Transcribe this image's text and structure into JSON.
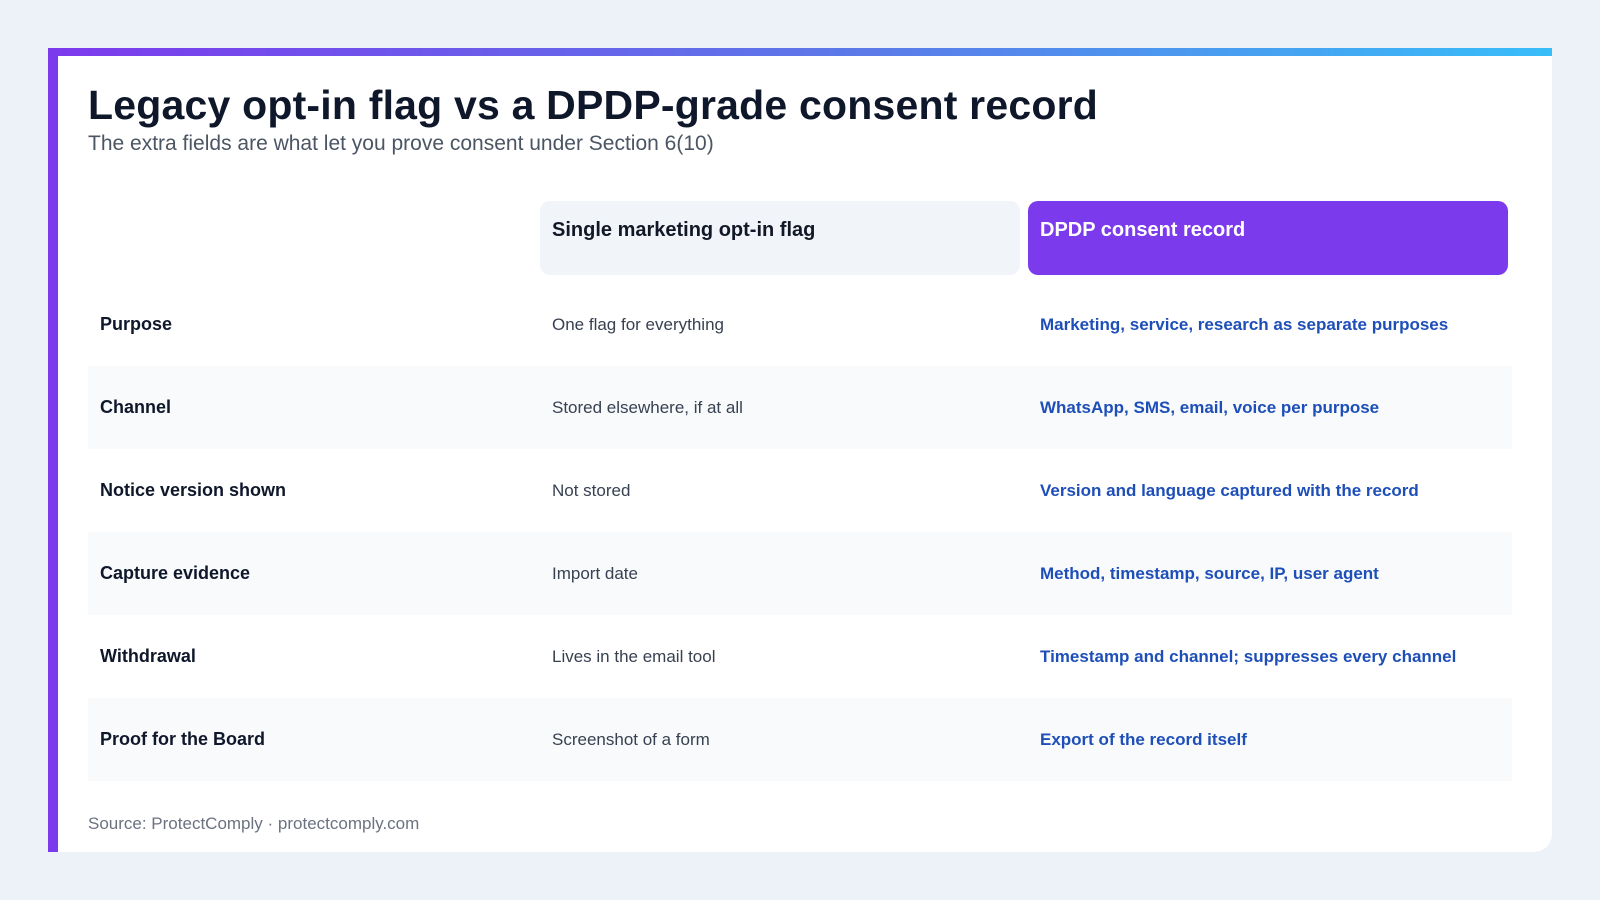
{
  "title": "Legacy opt-in flag vs a DPDP-grade consent record",
  "subtitle": "The extra fields are what let you prove consent under Section 6(10)",
  "columns": {
    "legacy": "Single marketing opt-in flag",
    "dpdp": "DPDP consent record"
  },
  "rows": [
    {
      "label": "Purpose",
      "legacy": "One flag for everything",
      "dpdp": "Marketing, service, research as separate purposes"
    },
    {
      "label": "Channel",
      "legacy": "Stored elsewhere, if at all",
      "dpdp": "WhatsApp, SMS, email, voice per purpose"
    },
    {
      "label": "Notice version shown",
      "legacy": "Not stored",
      "dpdp": "Version and language captured with the record"
    },
    {
      "label": "Capture evidence",
      "legacy": "Import date",
      "dpdp": "Method, timestamp, source, IP, user agent"
    },
    {
      "label": "Withdrawal",
      "legacy": "Lives in the email tool",
      "dpdp": "Timestamp and channel; suppresses every channel"
    },
    {
      "label": "Proof for the Board",
      "legacy": "Screenshot of a form",
      "dpdp": "Export of the record itself"
    }
  ],
  "source": "Source: ProtectComply · protectcomply.com",
  "colors": {
    "accent": "#7c3aed",
    "gradient_end": "#38bdf8",
    "dpdp_text": "#1e4fb8",
    "background": "#edf1f8"
  }
}
